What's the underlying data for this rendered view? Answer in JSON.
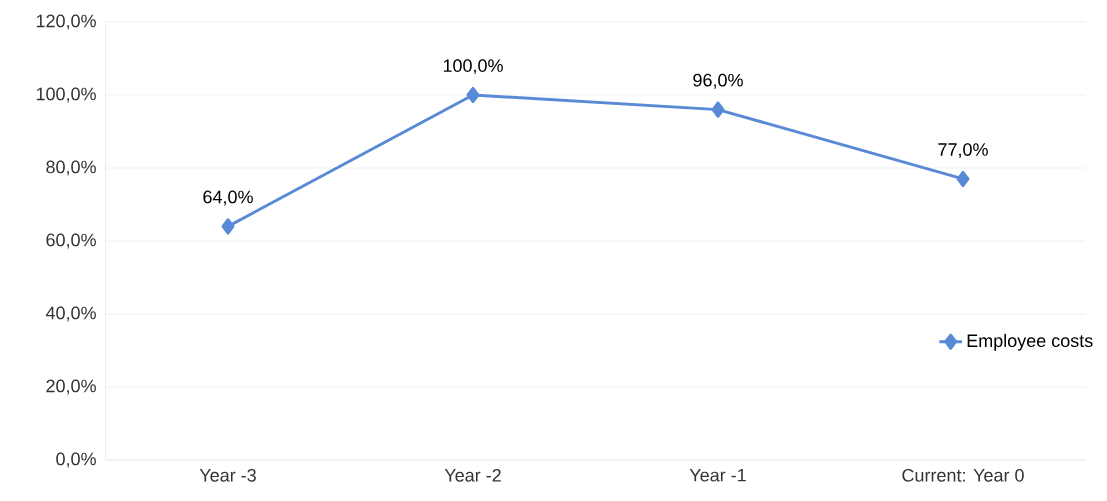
{
  "chart_data": {
    "type": "line",
    "categories": [
      "Year -3",
      "Year -2",
      "Year -1",
      "Current: Year 0"
    ],
    "series": [
      {
        "name": "Employee costs",
        "color": "#5a8ad6",
        "values": [
          64,
          100,
          96,
          77
        ],
        "value_labels": [
          "64,0%",
          "100,0%",
          "96,0%",
          "77,0%"
        ]
      }
    ],
    "ylim": [
      0,
      120
    ],
    "yticks": [
      {
        "value": 0,
        "label": "0,0%"
      },
      {
        "value": 20,
        "label": "20,0%"
      },
      {
        "value": 40,
        "label": "40,0%"
      },
      {
        "value": 60,
        "label": "60,0%"
      },
      {
        "value": 80,
        "label": "80,0%"
      },
      {
        "value": 100,
        "label": "100,0%"
      },
      {
        "value": 120,
        "label": "120,0%"
      }
    ],
    "grid": "y",
    "legend": "right",
    "marker": "diamond",
    "line_style": "solid"
  }
}
